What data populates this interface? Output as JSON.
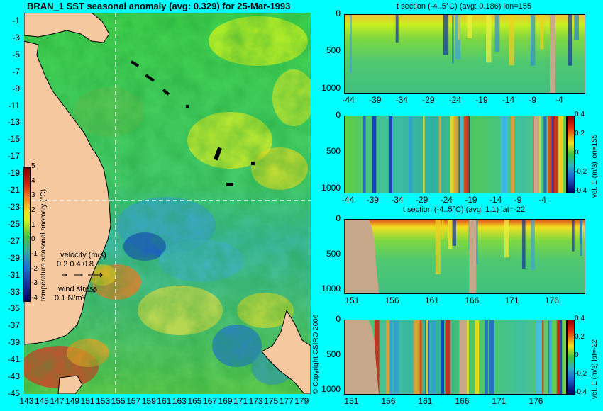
{
  "colors": {
    "background": "#00ffff",
    "land": "#f5c8a0",
    "bathy_land": "#c8a88a",
    "grid_line": "#ffffff"
  },
  "map": {
    "title": "BRAN_1 SST seasonal anomaly (avg: 0.329) for 25-Mar-1993",
    "y_ticks": [
      "-1",
      "-3",
      "-5",
      "-7",
      "-9",
      "-11",
      "-13",
      "-15",
      "-17",
      "-19",
      "-21",
      "-23",
      "-25",
      "-27",
      "-29",
      "-31",
      "-33",
      "-35",
      "-37",
      "-39",
      "-41",
      "-43",
      "-45"
    ],
    "x_ticks": [
      "143",
      "145",
      "147",
      "149",
      "151",
      "153",
      "155",
      "157",
      "159",
      "161",
      "163",
      "165",
      "167",
      "169",
      "171",
      "173",
      "175",
      "177",
      "179"
    ],
    "colorbar_ticks": [
      "5",
      "4",
      "3",
      "2",
      "1",
      "0",
      "-1",
      "-2",
      "-3",
      "-4"
    ],
    "colorbar_label": "temperature seasonal anomaly (°C)",
    "velocity_label": "velocity (m/s)",
    "velocity_scale": "0.2 0.4 0.8",
    "wind_label": "wind stress",
    "wind_scale": "0.1 N/m²",
    "copyright": "© Copyright CSIRO 2006"
  },
  "panels": [
    {
      "title": "t section (-4..5°C) (avg: 0.186) lon=155",
      "y_ticks": [
        "0",
        "500",
        "1000"
      ],
      "x_ticks": [
        "-44",
        "-39",
        "-34",
        "-29",
        "-24",
        "-19",
        "-14",
        "-9",
        "-4"
      ],
      "side_label": "",
      "colorbar_ticks": []
    },
    {
      "title": "",
      "y_ticks": [
        "0",
        "500",
        "1000"
      ],
      "x_ticks": [
        "-44",
        "-39",
        "-34",
        "-29",
        "-24",
        "-19",
        "-14",
        "-9",
        "-4"
      ],
      "side_label": "vel. E (m/s) lon=155",
      "colorbar_ticks": [
        "0.4",
        "0.2",
        "0",
        "-0.2",
        "-0.4"
      ]
    },
    {
      "title": "t section (-4..5°C) (avg: 1.1) lat=-22",
      "y_ticks": [
        "0",
        "500",
        "1000"
      ],
      "x_ticks": [
        "151",
        "156",
        "161",
        "166",
        "171",
        "176"
      ],
      "side_label": "",
      "colorbar_ticks": []
    },
    {
      "title": "",
      "y_ticks": [
        "0",
        "500",
        "1000"
      ],
      "x_ticks": [
        "151",
        "156",
        "161",
        "166",
        "171",
        "176"
      ],
      "side_label": "vel. E (m/s) lat=-22",
      "colorbar_ticks": [
        "0.4",
        "0.2",
        "0",
        "-0.2",
        "-0.4"
      ]
    }
  ],
  "chart_data": [
    {
      "type": "heatmap",
      "title": "BRAN_1 SST seasonal anomaly (avg: 0.329) for 25-Mar-1993",
      "x_ticks": [
        143,
        145,
        147,
        149,
        151,
        153,
        155,
        157,
        159,
        161,
        163,
        165,
        167,
        169,
        171,
        173,
        175,
        177,
        179
      ],
      "y_ticks": [
        -1,
        -3,
        -5,
        -7,
        -9,
        -11,
        -13,
        -15,
        -17,
        -19,
        -21,
        -23,
        -25,
        -27,
        -29,
        -31,
        -33,
        -35,
        -37,
        -39,
        -41,
        -43,
        -45
      ],
      "xlim": [
        142.5,
        180
      ],
      "ylim": [
        -45,
        0
      ],
      "colorbar": {
        "label": "temperature seasonal anomaly (°C)",
        "range": [
          -4,
          5
        ]
      },
      "average": 0.329,
      "section_lines": {
        "lon": 155,
        "lat": -22
      }
    },
    {
      "type": "heatmap",
      "title": "t section (-4..5°C) (avg: 0.186) lon=155",
      "x_ticks": [
        -44,
        -39,
        -34,
        -29,
        -24,
        -19,
        -14,
        -9,
        -4
      ],
      "y_ticks": [
        0,
        500,
        1000
      ],
      "xlim": [
        -45,
        0
      ],
      "ylim": [
        1050,
        0
      ],
      "average": 0.186
    },
    {
      "type": "heatmap",
      "side_label": "vel. E (m/s) lon=155",
      "x_ticks": [
        -44,
        -39,
        -34,
        -29,
        -24,
        -19,
        -14,
        -9,
        -4
      ],
      "y_ticks": [
        0,
        500,
        1000
      ],
      "colorbar": {
        "range": [
          -0.4,
          0.4
        ],
        "ticks": [
          0.4,
          0.2,
          0,
          -0.2,
          -0.4
        ]
      }
    },
    {
      "type": "heatmap",
      "title": "t section (-4..5°C) (avg: 1.1) lat=-22",
      "x_ticks": [
        151,
        156,
        161,
        166,
        171,
        176
      ],
      "y_ticks": [
        0,
        500,
        1000
      ],
      "xlim": [
        150,
        180
      ],
      "ylim": [
        1050,
        0
      ],
      "average": 1.1
    },
    {
      "type": "heatmap",
      "side_label": "vel. E (m/s) lat=-22",
      "x_ticks": [
        151,
        156,
        161,
        166,
        171,
        176
      ],
      "y_ticks": [
        0,
        500,
        1000
      ],
      "colorbar": {
        "range": [
          -0.4,
          0.4
        ],
        "ticks": [
          0.4,
          0.2,
          0,
          -0.2,
          -0.4
        ]
      }
    }
  ]
}
